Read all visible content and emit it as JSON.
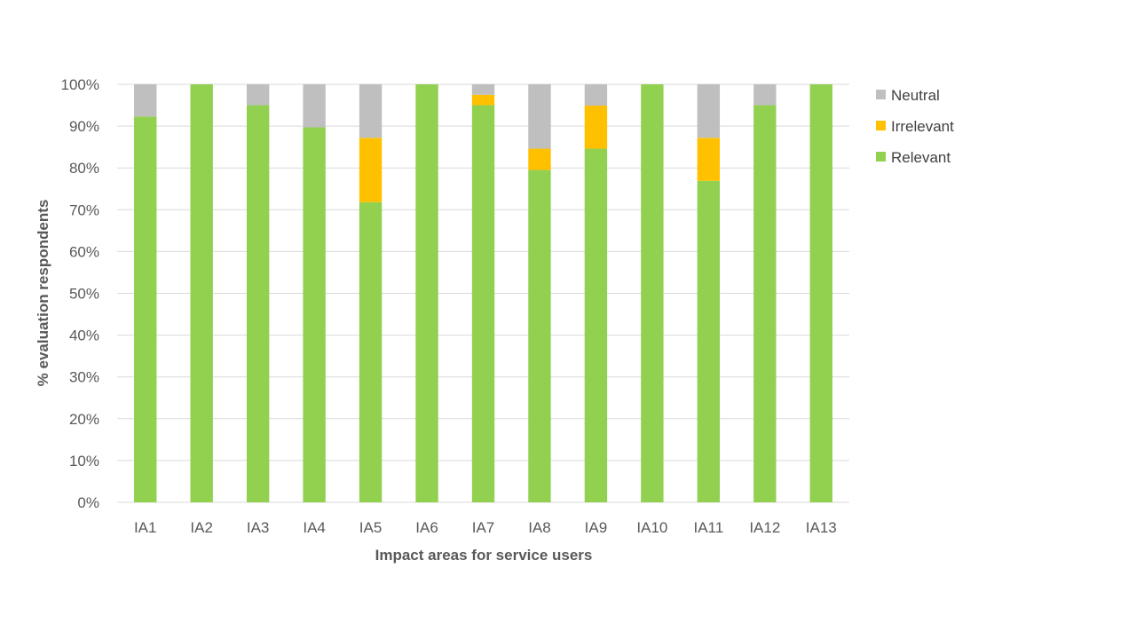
{
  "chart_data": {
    "type": "bar",
    "stacked": true,
    "categories": [
      "IA1",
      "IA2",
      "IA3",
      "IA4",
      "IA5",
      "IA6",
      "IA7",
      "IA8",
      "IA9",
      "IA10",
      "IA11",
      "IA12",
      "IA13"
    ],
    "series": [
      {
        "name": "Relevant",
        "color": "#92d050",
        "values": [
          92.3,
          100,
          95,
          89.7,
          71.8,
          100,
          95,
          79.5,
          84.6,
          100,
          76.9,
          95,
          100
        ]
      },
      {
        "name": "Irrelevant",
        "color": "#ffc000",
        "values": [
          0,
          0,
          0,
          0,
          15.4,
          0,
          2.5,
          5.1,
          10.3,
          0,
          10.3,
          0,
          0
        ]
      },
      {
        "name": "Neutral",
        "color": "#bfbfbf",
        "values": [
          7.7,
          0,
          5,
          10.3,
          12.8,
          0,
          2.5,
          15.4,
          5.1,
          0,
          12.8,
          5,
          0
        ]
      }
    ],
    "legend_order": [
      "Neutral",
      "Irrelevant",
      "Relevant"
    ],
    "legend_position": "right",
    "title": "",
    "xlabel": "Impact areas for service users",
    "ylabel": "% evaluation respondents",
    "ylim": [
      0,
      100
    ],
    "yticks": [
      "0%",
      "10%",
      "20%",
      "30%",
      "40%",
      "50%",
      "60%",
      "70%",
      "80%",
      "90%",
      "100%"
    ],
    "grid": true
  }
}
